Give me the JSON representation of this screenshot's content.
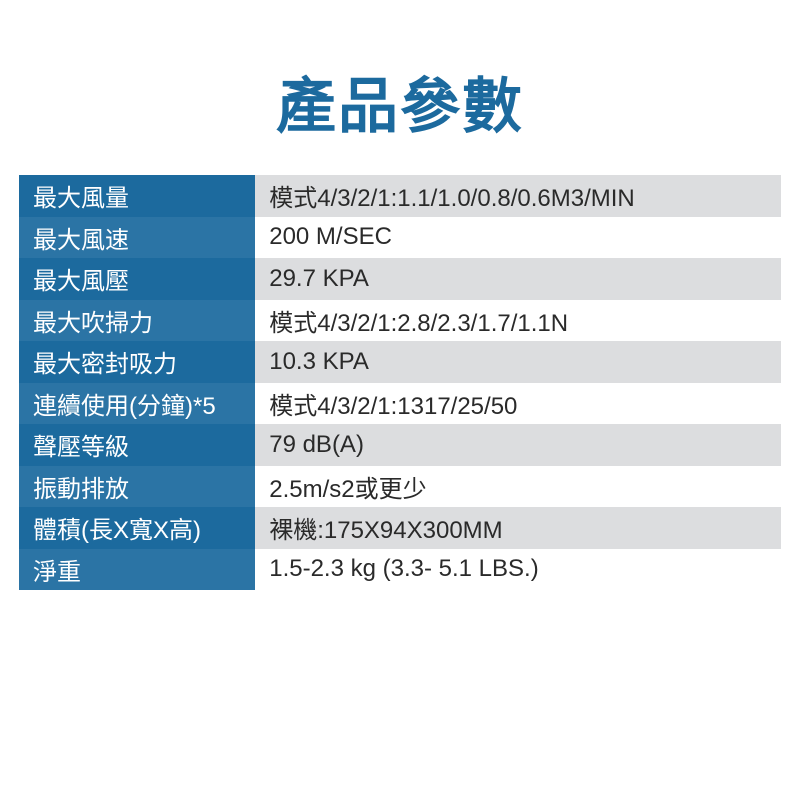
{
  "title": "產品參數",
  "title_color": "#1c6a9e",
  "title_fontsize": 60,
  "table": {
    "label_bg_odd": "#1c6a9e",
    "label_bg_even": "#2b74a5",
    "label_text_color": "#ffffff",
    "value_bg_odd": "#dcdddf",
    "value_bg_even": "#ffffff",
    "value_text_color": "#2a2a2a",
    "cell_fontsize": 24,
    "row_height": 41.5,
    "rows": [
      {
        "label": "最大風量",
        "value": "模式4/3/2/1:1.1/1.0/0.8/0.6M3/MIN"
      },
      {
        "label": "最大風速",
        "value": "200 M/SEC"
      },
      {
        "label": "最大風壓",
        "value": "29.7 KPA"
      },
      {
        "label": "最大吹掃力",
        "value": "模式4/3/2/1:2.8/2.3/1.7/1.1N"
      },
      {
        "label": "最大密封吸力",
        "value": "10.3 KPA"
      },
      {
        "label": "連續使用(分鐘)*5",
        "value": "模式4/3/2/1:1317/25/50"
      },
      {
        "label": "聲壓等級",
        "value": "79 dB(A)"
      },
      {
        "label": "振動排放",
        "value": "2.5m/s2或更少"
      },
      {
        "label": "體積(長X寬X高)",
        "value": "裸機:175X94X300MM"
      },
      {
        "label": "淨重",
        "value": "1.5-2.3 kg (3.3-  5.1 LBS.)"
      }
    ]
  }
}
